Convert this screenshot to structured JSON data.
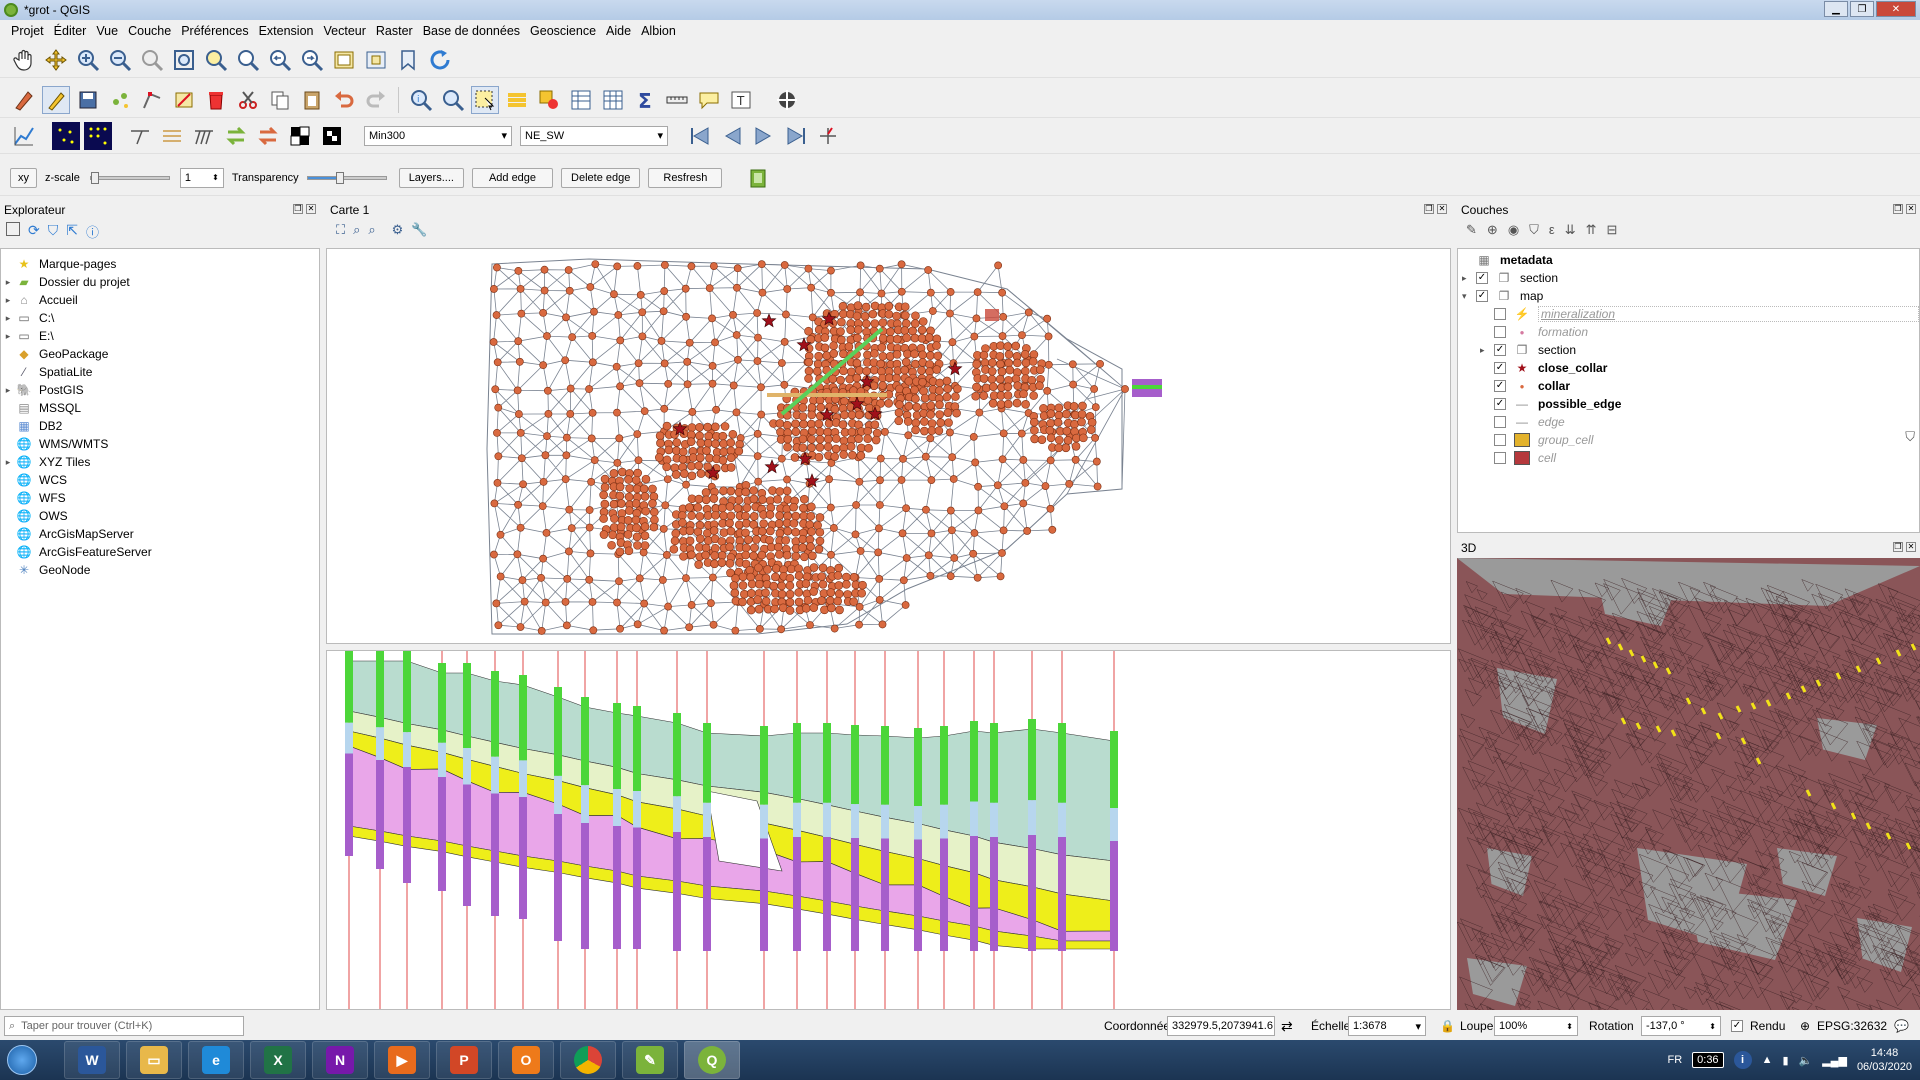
{
  "window": {
    "title": "*grot - QGIS"
  },
  "menu": [
    "Projet",
    "Éditer",
    "Vue",
    "Couche",
    "Préférences",
    "Extension",
    "Vecteur",
    "Raster",
    "Base de données",
    "Geoscience",
    "Aide",
    "Albion"
  ],
  "albion_toolbar": {
    "graph_combo": "Min300",
    "section_combo": "NE_SW"
  },
  "section_toolbar": {
    "xy_button": "xy",
    "zscale_label": "z-scale",
    "zscale_value": "1",
    "transparency_label": "Transparency",
    "transparency_level": 0.4,
    "layers_button": "Layers....",
    "add_edge_button": "Add edge",
    "delete_edge_button": "Delete edge",
    "refresh_button": "Resfresh"
  },
  "browser": {
    "title": "Explorateur",
    "items": [
      {
        "label": "Marque-pages",
        "icon": "star-icon",
        "expandable": false
      },
      {
        "label": "Dossier du projet",
        "icon": "folder-icon",
        "expandable": true
      },
      {
        "label": "Accueil",
        "icon": "home-icon",
        "expandable": true
      },
      {
        "label": "C:\\",
        "icon": "drive-icon",
        "expandable": true
      },
      {
        "label": "E:\\",
        "icon": "drive-icon",
        "expandable": true
      },
      {
        "label": "GeoPackage",
        "icon": "geopackage-icon",
        "expandable": false
      },
      {
        "label": "SpatiaLite",
        "icon": "spatialite-icon",
        "expandable": false
      },
      {
        "label": "PostGIS",
        "icon": "postgis-icon",
        "expandable": true
      },
      {
        "label": "MSSQL",
        "icon": "mssql-icon",
        "expandable": false
      },
      {
        "label": "DB2",
        "icon": "db2-icon",
        "expandable": false
      },
      {
        "label": "WMS/WMTS",
        "icon": "globe-icon",
        "expandable": false
      },
      {
        "label": "XYZ Tiles",
        "icon": "globe-icon",
        "expandable": true
      },
      {
        "label": "WCS",
        "icon": "globe-icon",
        "expandable": false
      },
      {
        "label": "WFS",
        "icon": "globe-icon",
        "expandable": false
      },
      {
        "label": "OWS",
        "icon": "globe-icon",
        "expandable": false
      },
      {
        "label": "ArcGisMapServer",
        "icon": "globe-icon",
        "expandable": false
      },
      {
        "label": "ArcGisFeatureServer",
        "icon": "globe-icon",
        "expandable": false
      },
      {
        "label": "GeoNode",
        "icon": "geonode-icon",
        "expandable": false
      }
    ]
  },
  "map_panel": {
    "title": "Carte 1"
  },
  "layers_panel": {
    "title": "Couches",
    "items": [
      {
        "label": "metadata",
        "depth": 0,
        "checked": null,
        "bold": true,
        "muted": false,
        "icon": "table-icon"
      },
      {
        "label": "section",
        "depth": 0,
        "checked": true,
        "bold": false,
        "muted": false,
        "icon": "group-icon"
      },
      {
        "label": "map",
        "depth": 0,
        "checked": true,
        "bold": false,
        "muted": false,
        "icon": "group-icon"
      },
      {
        "label": "mineralization",
        "depth": 1,
        "checked": false,
        "bold": false,
        "muted": true,
        "icon": "line-style-icon"
      },
      {
        "label": "formation",
        "depth": 1,
        "checked": false,
        "bold": false,
        "muted": true,
        "icon": "point-style-icon"
      },
      {
        "label": "section",
        "depth": 1,
        "checked": true,
        "bold": false,
        "muted": false,
        "icon": "group-icon"
      },
      {
        "label": "close_collar",
        "depth": 1,
        "checked": true,
        "bold": true,
        "muted": false,
        "icon": "star-marker-icon"
      },
      {
        "label": "collar",
        "depth": 1,
        "checked": true,
        "bold": true,
        "muted": false,
        "icon": "point-marker-icon"
      },
      {
        "label": "possible_edge",
        "depth": 1,
        "checked": true,
        "bold": true,
        "muted": false,
        "icon": "line-marker-icon"
      },
      {
        "label": "edge",
        "depth": 1,
        "checked": false,
        "bold": false,
        "muted": true,
        "icon": "line-marker-icon"
      },
      {
        "label": "group_cell",
        "depth": 1,
        "checked": false,
        "bold": false,
        "muted": true,
        "icon": "yellow-fill-icon"
      },
      {
        "label": "cell",
        "depth": 1,
        "checked": false,
        "bold": false,
        "muted": true,
        "icon": "red-fill-icon"
      }
    ]
  },
  "view3d_panel": {
    "title": "3D"
  },
  "status": {
    "search_placeholder": "Taper pour trouver (Ctrl+K)",
    "coord_label": "Coordonnée",
    "coord_value": "332979.5,2073941.6",
    "scale_label": "Échelle",
    "scale_value": "1:3678",
    "magnifier_label": "Loupe",
    "magnifier_value": "100%",
    "rotation_label": "Rotation",
    "rotation_value": "-137,0 °",
    "render_label": "Rendu",
    "crs": "EPSG:32632"
  },
  "taskbar": {
    "lang": "FR",
    "battery": "0:36",
    "time": "14:48",
    "date": "06/03/2020"
  },
  "colors": {
    "collar_fill": "#d9693f",
    "mesh_edge": "#7a8391",
    "star": "#a0101a",
    "section_line": "#e0b46a",
    "alt_line": "#5ad05a",
    "green_hole": "#4cd639",
    "yellow_layer": "#eeee1a",
    "pink_layer": "#e9a6e9",
    "teal_layer": "#b9dccf",
    "hole_purple": "#a65ecb"
  }
}
